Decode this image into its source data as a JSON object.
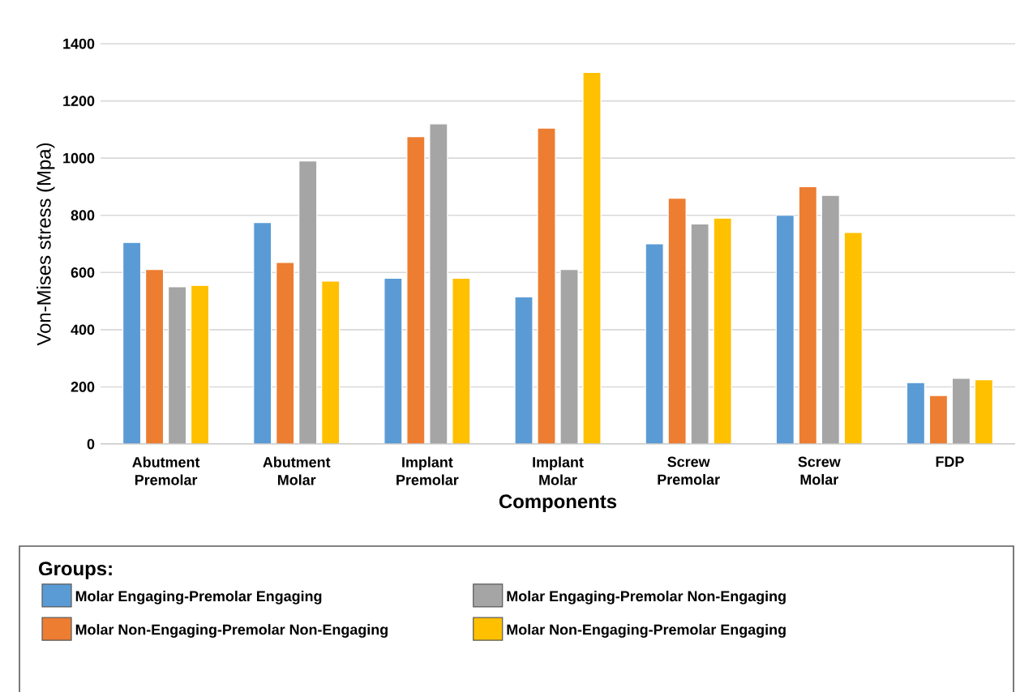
{
  "chart_data": {
    "type": "bar",
    "xlabel": "Components",
    "ylabel": "Von-Mises stress (Mpa)",
    "legend_title": "Groups:",
    "categories": [
      "Abutment Premolar",
      "Abutment Molar",
      "Implant Premolar",
      "Implant Molar",
      "Screw Premolar",
      "Screw Molar",
      "FDP"
    ],
    "series": [
      {
        "name": "Molar Engaging-Premolar Engaging",
        "color": "#5b9bd5",
        "values": [
          705,
          775,
          580,
          515,
          700,
          800,
          215
        ]
      },
      {
        "name": "Molar Non-Engaging-Premolar Non-Engaging",
        "color": "#ed7d31",
        "values": [
          610,
          635,
          1075,
          1105,
          860,
          900,
          170
        ]
      },
      {
        "name": "Molar Engaging-Premolar Non-Engaging",
        "color": "#a5a5a5",
        "values": [
          550,
          990,
          1120,
          610,
          770,
          870,
          230
        ]
      },
      {
        "name": "Molar Non-Engaging-Premolar Engaging",
        "color": "#ffc000",
        "values": [
          555,
          570,
          580,
          1300,
          790,
          740,
          225
        ]
      }
    ],
    "ylim": [
      0,
      1400
    ],
    "yticks": [
      0,
      200,
      400,
      600,
      800,
      1000,
      1200,
      1400
    ],
    "grid": "y",
    "legend": "bottom"
  }
}
